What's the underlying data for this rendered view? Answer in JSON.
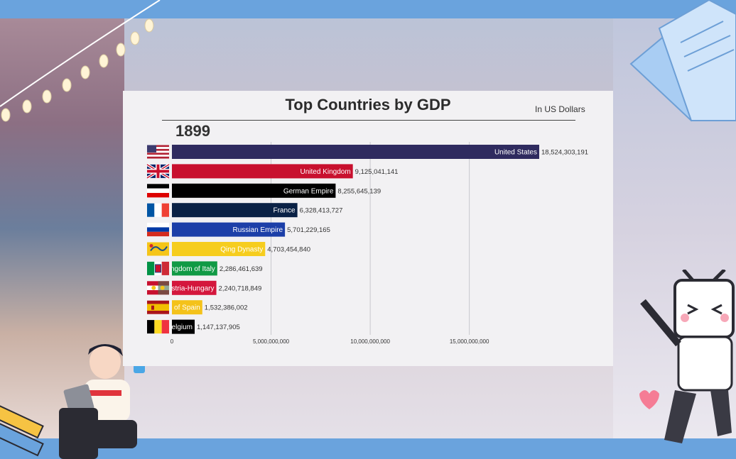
{
  "chart_data": {
    "type": "bar",
    "title": "Top Countries by GDP",
    "units_label": "In US Dollars",
    "year": "1899",
    "xlim": [
      0,
      20000000000
    ],
    "xticks": [
      {
        "value": 0,
        "label": "0"
      },
      {
        "value": 5000000000,
        "label": "5,000,000,000"
      },
      {
        "value": 10000000000,
        "label": "10,000,000,000"
      },
      {
        "value": 15000000000,
        "label": "15,000,000,000"
      }
    ],
    "bars": [
      {
        "name": "United States",
        "value": 18524303191,
        "value_label": "18,524,303,191",
        "color": "#2f2b5f",
        "text_color": "#ffffff",
        "flag": "us"
      },
      {
        "name": "United Kingdom",
        "value": 9125041141,
        "value_label": "9,125,041,141",
        "color": "#c8102e",
        "text_color": "#ffffff",
        "flag": "gb"
      },
      {
        "name": "German Empire",
        "value": 8255645139,
        "value_label": "8,255,645,139",
        "color": "#000000",
        "text_color": "#ffffff",
        "flag": "de"
      },
      {
        "name": "France",
        "value": 6328413727,
        "value_label": "6,328,413,727",
        "color": "#0a2145",
        "text_color": "#ffffff",
        "flag": "fr"
      },
      {
        "name": "Russian Empire",
        "value": 5701229165,
        "value_label": "5,701,229,165",
        "color": "#1c3fa8",
        "text_color": "#ffffff",
        "flag": "ru"
      },
      {
        "name": "Qing Dynasty",
        "value": 4703454840,
        "value_label": "4,703,454,840",
        "color": "#f6cd1e",
        "text_color": "#ffffff",
        "flag": "qing"
      },
      {
        "name": "Kingdom of Italy",
        "value": 2286461639,
        "value_label": "2,286,461,639",
        "color": "#109a45",
        "text_color": "#ffffff",
        "flag": "it"
      },
      {
        "name": "Austria-Hungary",
        "value": 2240718849,
        "value_label": "2,240,718,849",
        "color": "#d4163c",
        "text_color": "#ffffff",
        "flag": "ah"
      },
      {
        "name": "Kingdom of Spain",
        "value": 1532386002,
        "value_label": "1,532,386,002",
        "color": "#f4c21a",
        "text_color": "#ffffff",
        "flag": "es"
      },
      {
        "name": "Belgium",
        "value": 1147137905,
        "value_label": "1,147,137,905",
        "color": "#000000",
        "text_color": "#ffffff",
        "flag": "be"
      }
    ]
  }
}
